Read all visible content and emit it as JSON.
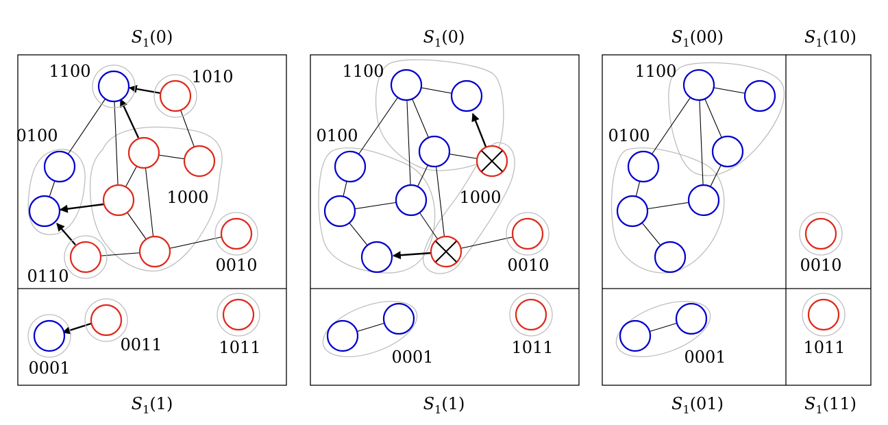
{
  "colors": {
    "blue_node": "#0000cc",
    "red_node": "#dd2a1b",
    "hull": "#bdbdbd"
  },
  "panel1": {
    "top": "S1(0)",
    "bottom": "S1(1)",
    "labels": [
      "1100",
      "1010",
      "0100",
      "1000",
      "0110",
      "0010",
      "0011",
      "0001",
      "1011"
    ]
  },
  "panel2": {
    "top": "S1(0)",
    "bottom": "S1(1)",
    "labels": [
      "1100",
      "0100",
      "1000",
      "0010",
      "0001",
      "1011"
    ]
  },
  "panel3": {
    "top_left": "S1(00)",
    "top_right": "S1(10)",
    "bottom_left": "S1(01)",
    "bottom_right": "S1(11)",
    "labels": [
      "1100",
      "0100",
      "0010",
      "0001",
      "1011"
    ]
  }
}
